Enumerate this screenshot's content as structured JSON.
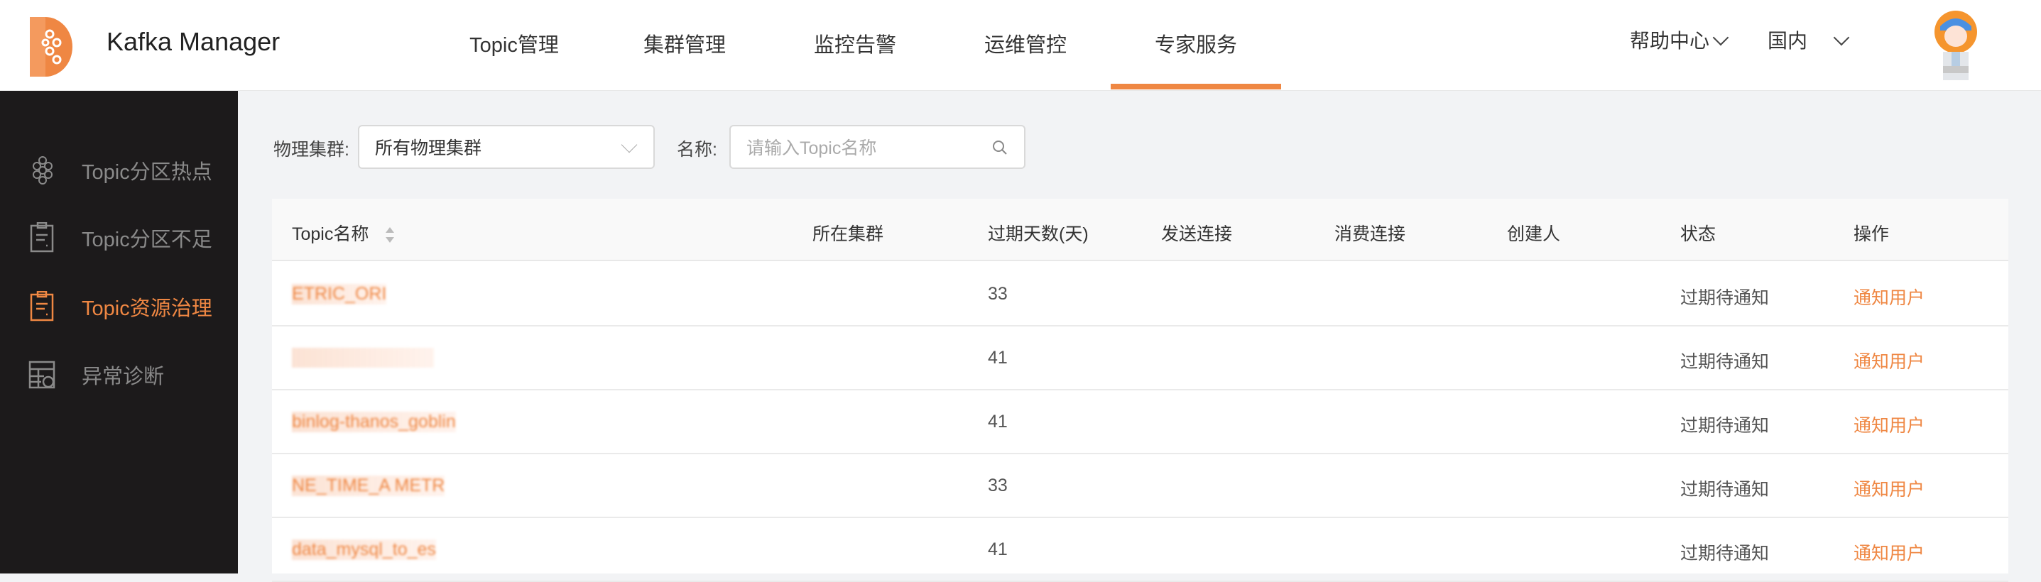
{
  "header": {
    "brand": "Kafka Manager",
    "nav": [
      {
        "label": "Topic管理"
      },
      {
        "label": "集群管理"
      },
      {
        "label": "监控告警"
      },
      {
        "label": "运维管控"
      },
      {
        "label": "专家服务",
        "active": true
      }
    ],
    "help": "帮助中心",
    "region": "国内",
    "accent": "#ef8743"
  },
  "sidebar": {
    "items": [
      {
        "label": "Topic分区热点",
        "icon": "hexagon-grid-icon"
      },
      {
        "label": "Topic分区不足",
        "icon": "clipboard-icon"
      },
      {
        "label": "Topic资源治理",
        "icon": "clipboard-icon",
        "active": true
      },
      {
        "label": "异常诊断",
        "icon": "table-dollar-icon"
      }
    ]
  },
  "filters": {
    "cluster_label": "物理集群:",
    "cluster_value": "所有物理集群",
    "name_label": "名称:",
    "name_placeholder": "请输入Topic名称"
  },
  "table": {
    "columns": [
      "Topic名称",
      "所在集群",
      "过期天数(天)",
      "发送连接",
      "消费连接",
      "创建人",
      "状态",
      "操作"
    ],
    "rows": [
      {
        "topic": "ETRIC_ORI",
        "cluster": "",
        "days": "33",
        "send": "",
        "consume": "",
        "creator": "",
        "status": "过期待通知",
        "action": "通知用户"
      },
      {
        "topic": "",
        "cluster": "",
        "days": "41",
        "send": "",
        "consume": "",
        "creator": "",
        "status": "过期待通知",
        "action": "通知用户"
      },
      {
        "topic": "binlog-thanos_goblin",
        "cluster": "",
        "days": "41",
        "send": "",
        "consume": "",
        "creator": "",
        "status": "过期待通知",
        "action": "通知用户"
      },
      {
        "topic": "NE_TIME_A METR",
        "cluster": "",
        "days": "33",
        "send": "",
        "consume": "",
        "creator": "",
        "status": "过期待通知",
        "action": "通知用户"
      },
      {
        "topic": "data_mysql_to_es",
        "cluster": "",
        "days": "41",
        "send": "",
        "consume": "",
        "creator": "",
        "status": "过期待通知",
        "action": "通知用户"
      }
    ]
  }
}
